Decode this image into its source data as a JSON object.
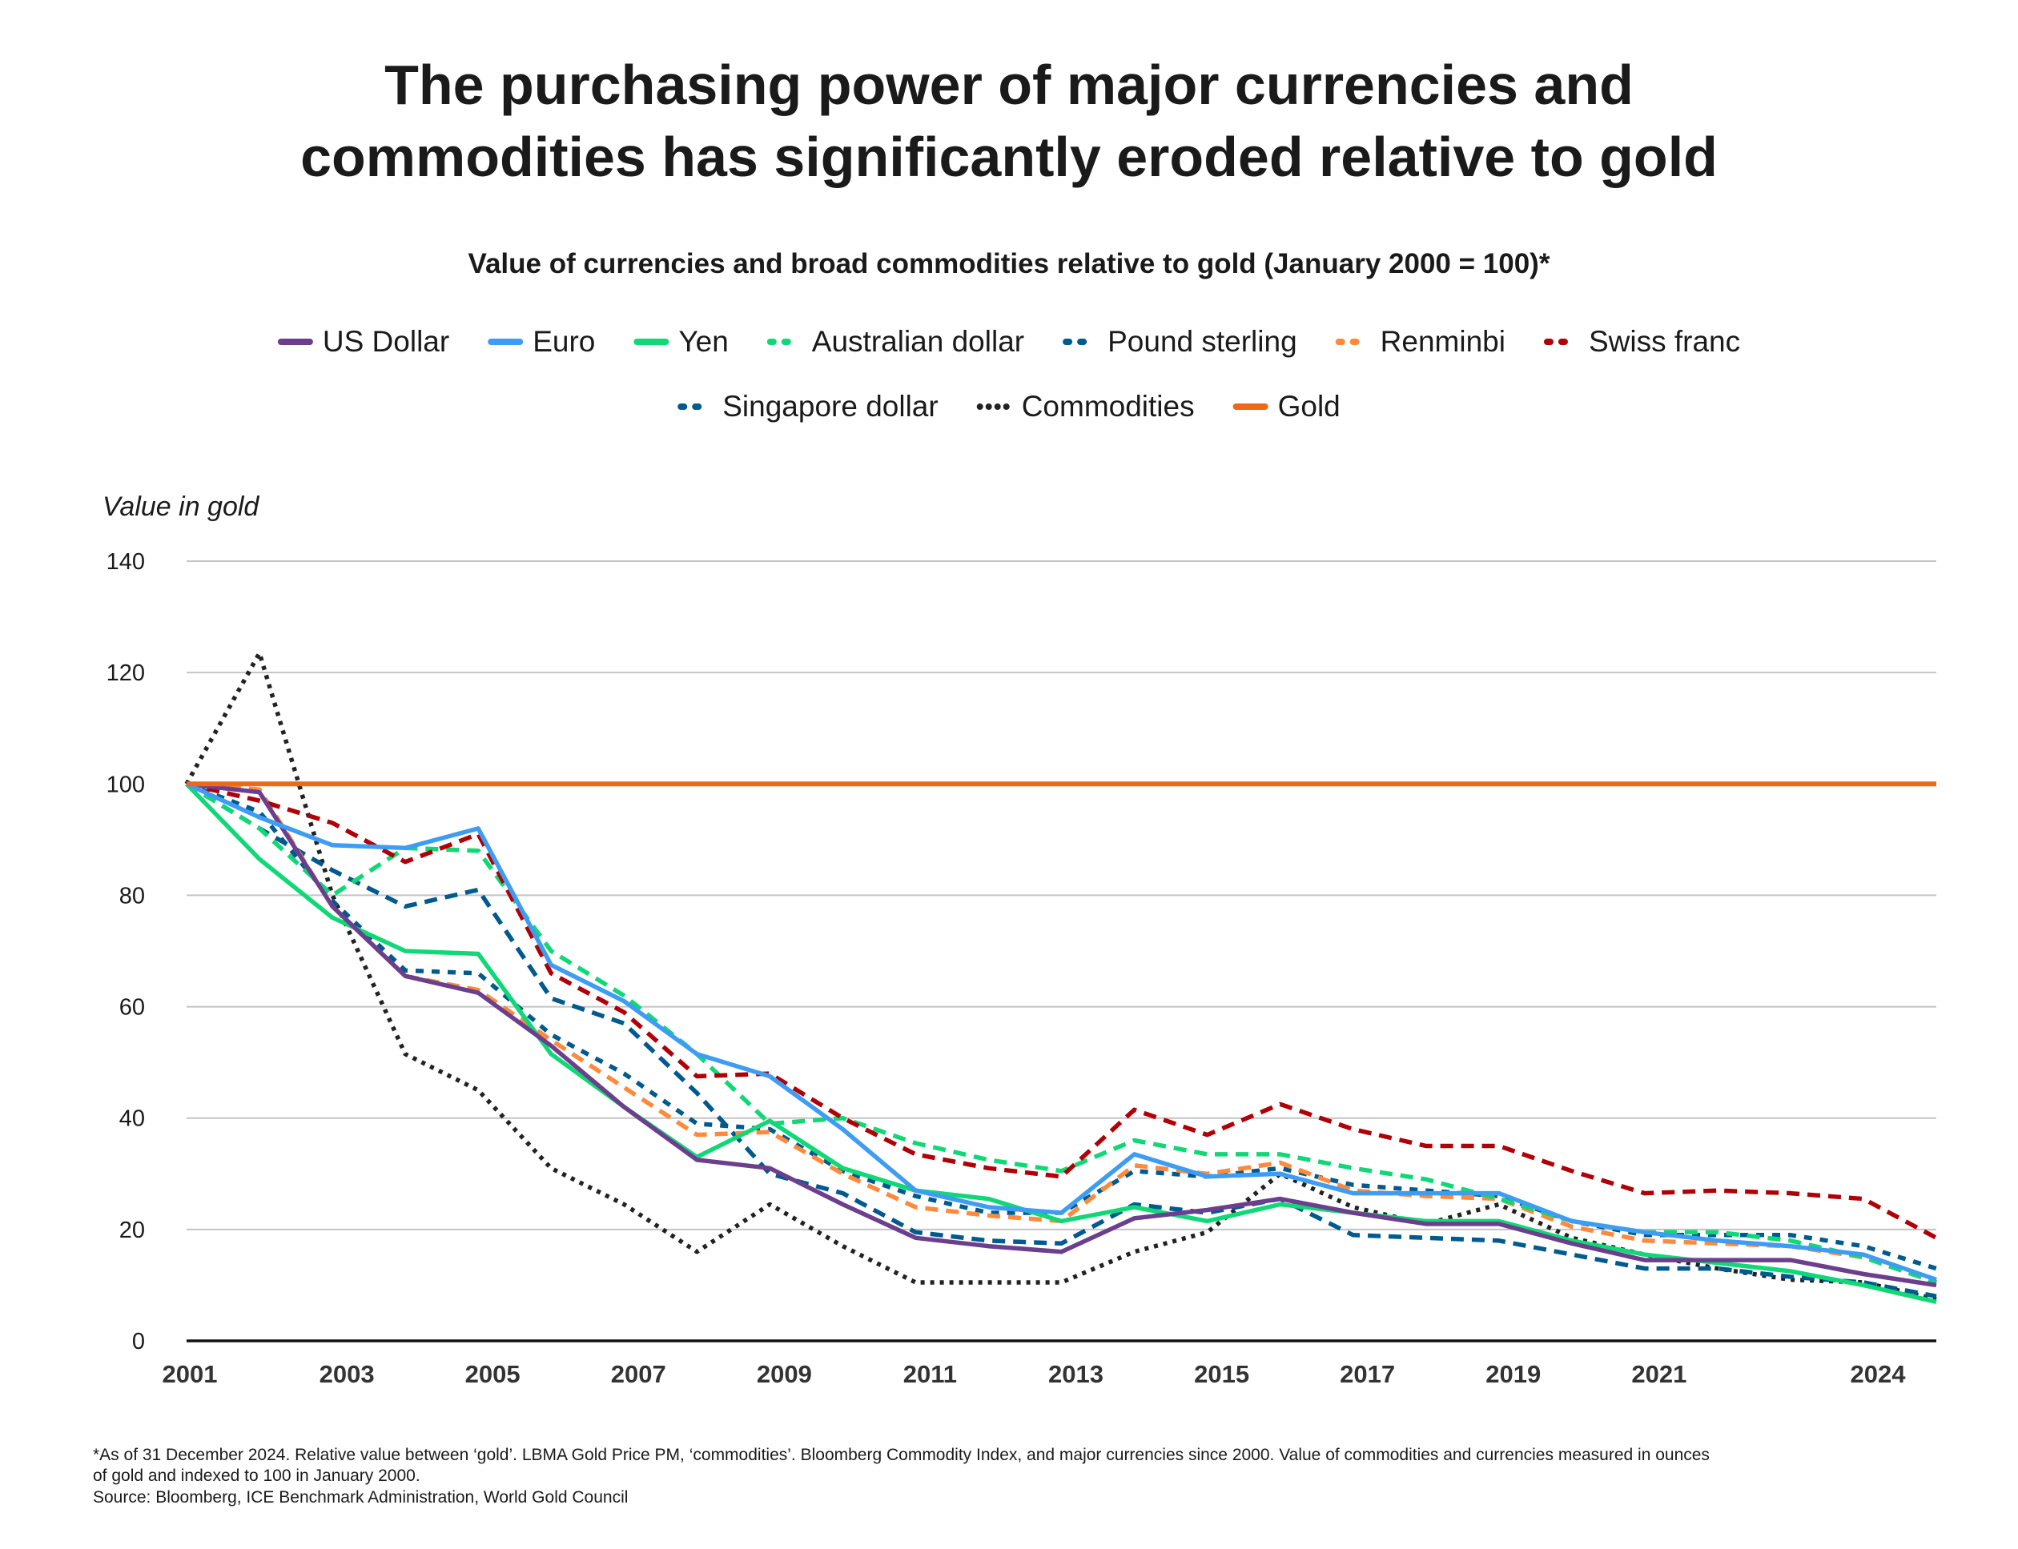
{
  "chart_data": {
    "type": "line",
    "title": "The purchasing power of major currencies and commodities has significantly eroded relative to gold",
    "title_lines": [
      "The purchasing power of major currencies and",
      "commodities has significantly eroded relative to gold"
    ],
    "subtitle": "Value of currencies and broad commodities relative to gold (January 2000 = 100)*",
    "ylabel": "Value in gold",
    "xlabel": "",
    "ylim": [
      0,
      140
    ],
    "yticks": [
      0,
      20,
      40,
      60,
      80,
      100,
      120,
      140
    ],
    "grid": true,
    "legend_placement": "top",
    "x": [
      2001,
      2002,
      2003,
      2004,
      2005,
      2006,
      2007,
      2008,
      2009,
      2010,
      2011,
      2012,
      2013,
      2014,
      2015,
      2016,
      2017,
      2018,
      2019,
      2020,
      2021,
      2022,
      2023,
      2024,
      2025
    ],
    "xticks": [
      {
        "x": 2001,
        "label": "2001"
      },
      {
        "x": 2003,
        "label": "2003"
      },
      {
        "x": 2005,
        "label": "2005"
      },
      {
        "x": 2007,
        "label": "2007"
      },
      {
        "x": 2009,
        "label": "2009"
      },
      {
        "x": 2011,
        "label": "2011"
      },
      {
        "x": 2013,
        "label": "2013"
      },
      {
        "x": 2015,
        "label": "2015"
      },
      {
        "x": 2017,
        "label": "2017"
      },
      {
        "x": 2019,
        "label": "2019"
      },
      {
        "x": 2021,
        "label": "2021"
      },
      {
        "x": 2024,
        "label": "2024"
      }
    ],
    "series": [
      {
        "name": "US Dollar",
        "color": "#6c3f8c",
        "style": "solid",
        "values": [
          100,
          98.5,
          78,
          65.5,
          62.5,
          53,
          42,
          32.5,
          31,
          24.5,
          18.5,
          17,
          16,
          22,
          23.5,
          25.5,
          23,
          21,
          21,
          17.5,
          14.5,
          14.5,
          14.5,
          12,
          10
        ]
      },
      {
        "name": "Euro",
        "color": "#3e9cf2",
        "style": "solid",
        "values": [
          100,
          94,
          89,
          88.5,
          92,
          67.5,
          61,
          51.5,
          47.5,
          38,
          27,
          24,
          23,
          33.5,
          29.5,
          30,
          26.5,
          26.5,
          26.5,
          21.5,
          19.5,
          18,
          17,
          15.5,
          11
        ]
      },
      {
        "name": "Yen",
        "color": "#10d877",
        "style": "solid",
        "values": [
          100,
          86.5,
          76,
          70,
          69.5,
          51.5,
          42,
          33,
          39.5,
          31,
          27,
          25.5,
          21.5,
          24,
          21.5,
          24.5,
          23,
          21.5,
          21.5,
          18,
          15.5,
          14,
          12.5,
          10,
          7
        ]
      },
      {
        "name": "Australian dollar",
        "color": "#10d877",
        "style": "dashed",
        "values": [
          100,
          92,
          80,
          88.5,
          88,
          70,
          62,
          51.5,
          39,
          40,
          35.5,
          32.5,
          30.5,
          36,
          33.5,
          33.5,
          31,
          29,
          25.5,
          21.5,
          19.5,
          19.5,
          18,
          15,
          10.5
        ]
      },
      {
        "name": "Pound sterling",
        "color": "#005a8e",
        "style": "dashed",
        "values": [
          100,
          92,
          84.5,
          78,
          81,
          61.5,
          57,
          44.5,
          30,
          26.5,
          19.5,
          18,
          17.5,
          24.5,
          23,
          25.5,
          19,
          18.5,
          18,
          15.5,
          13,
          13,
          11.5,
          10.5,
          8
        ]
      },
      {
        "name": "Renminbi",
        "color": "#ff8a3d",
        "style": "dashed",
        "values": [
          100,
          99,
          78,
          65.5,
          63,
          54,
          45.5,
          37,
          37.5,
          30,
          24,
          22.5,
          21.5,
          31.5,
          30,
          32,
          27,
          26,
          25.5,
          20.5,
          18,
          17.5,
          17,
          15,
          10.5
        ]
      },
      {
        "name": "Swiss franc",
        "color": "#b00007",
        "style": "dashed",
        "values": [
          100,
          97,
          93,
          86,
          91,
          66,
          59,
          47.5,
          48,
          40,
          33.5,
          31,
          29.5,
          41.5,
          37,
          42.5,
          38,
          35,
          35,
          30.5,
          26.5,
          27,
          26.5,
          25.5,
          18.5
        ]
      },
      {
        "name": "Singapore dollar",
        "color": "#005a8e",
        "style": "short-dashed",
        "values": [
          100,
          95,
          79,
          66.5,
          66,
          55,
          48,
          39,
          38,
          30.5,
          26,
          23,
          23,
          30.5,
          29.5,
          31,
          28,
          27,
          26,
          21.5,
          19,
          19,
          19,
          17,
          13
        ]
      },
      {
        "name": "Commodities",
        "color": "#222222",
        "style": "dotted",
        "values": [
          100,
          123.5,
          80,
          51.5,
          45,
          31,
          24.5,
          16,
          24.5,
          17,
          10.5,
          10.5,
          10.5,
          16,
          19.5,
          30,
          24,
          21,
          24.5,
          18.5,
          15.5,
          13,
          11,
          10.5,
          7.5
        ]
      },
      {
        "name": "Gold",
        "color": "#ec6a17",
        "style": "solid",
        "values": [
          100,
          100,
          100,
          100,
          100,
          100,
          100,
          100,
          100,
          100,
          100,
          100,
          100,
          100,
          100,
          100,
          100,
          100,
          100,
          100,
          100,
          100,
          100,
          100,
          100
        ]
      }
    ],
    "footnote": [
      "*As of 31 December 2024. Relative value between ‘gold’. LBMA Gold Price PM, ‘commodities’. Bloomberg Commodity Index, and major currencies since 2000. Value of commodities and currencies measured in ounces",
      "of gold and indexed to 100 in January 2000.",
      "Source: Bloomberg, ICE Benchmark Administration, World Gold Council"
    ]
  }
}
